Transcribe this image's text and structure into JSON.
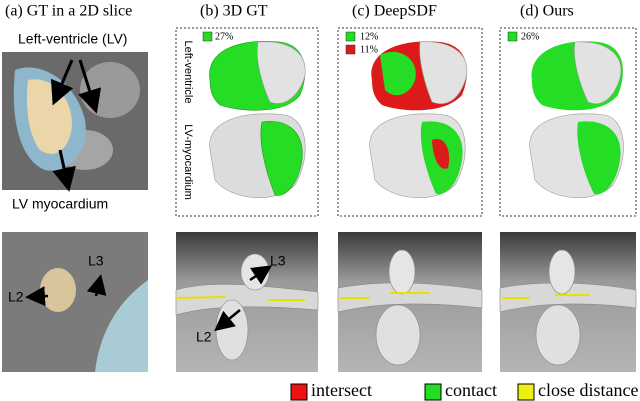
{
  "panels": [
    {
      "title": "(a) GT in a 2D slice",
      "labels": [
        "Left-ventricle (LV)",
        "LV myocardium",
        "L2",
        "L3"
      ]
    },
    {
      "title": "(b) 3D GT",
      "row_labels": [
        "Left-ventricle",
        "LV-myocardium"
      ],
      "stats": [
        "27%"
      ],
      "labels": [
        "L3",
        "L2"
      ]
    },
    {
      "title": "(c) DeepSDF",
      "stats": [
        "12%",
        "11%"
      ]
    },
    {
      "title": "(d) Ours",
      "stats": [
        "26%"
      ]
    }
  ],
  "legend": [
    "intersect",
    "contact",
    "close distance"
  ]
}
